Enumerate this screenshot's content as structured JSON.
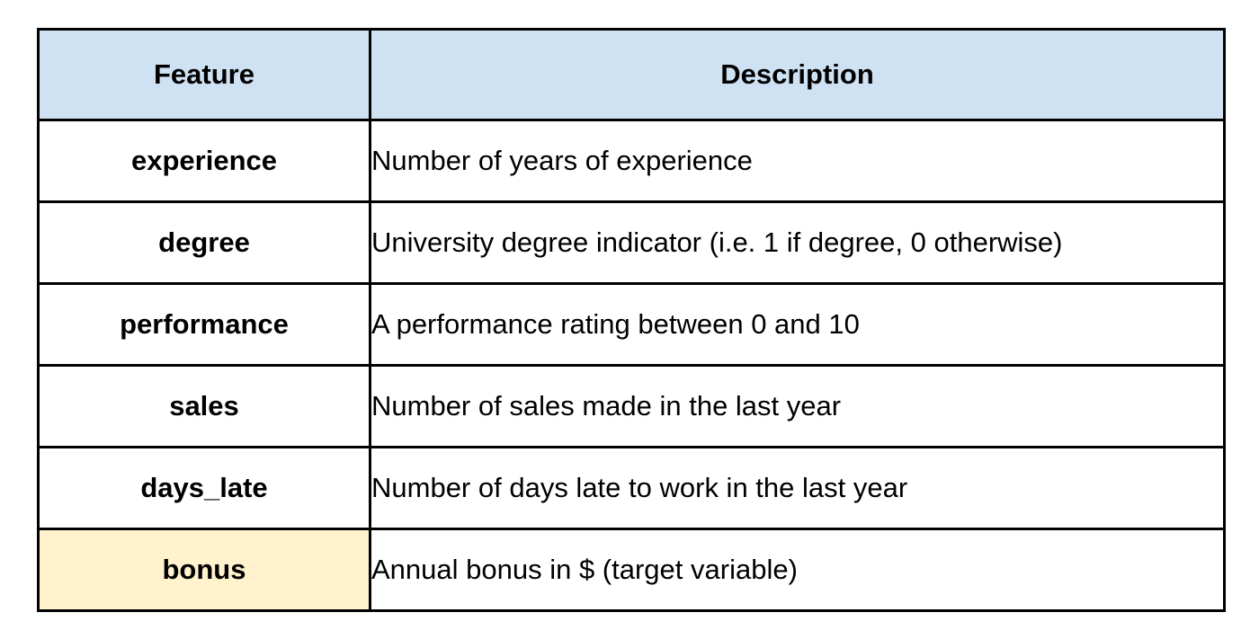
{
  "colors": {
    "header_bg": "#cfe2f3",
    "highlight_bg": "#fff2cc",
    "border": "#000000"
  },
  "table": {
    "headers": [
      "Feature",
      "Description"
    ],
    "rows": [
      {
        "feature": "experience",
        "description": "Number of years of experience",
        "highlight": false
      },
      {
        "feature": "degree",
        "description": "University degree indicator (i.e. 1 if degree, 0 otherwise)",
        "highlight": false
      },
      {
        "feature": "performance",
        "description": "A performance rating between 0 and 10",
        "highlight": false
      },
      {
        "feature": "sales",
        "description": "Number of sales made in the last year",
        "highlight": false
      },
      {
        "feature": "days_late",
        "description": "Number of days late to work in the last year",
        "highlight": false
      },
      {
        "feature": "bonus",
        "description": "Annual bonus in $ (target variable)",
        "highlight": true
      }
    ]
  }
}
